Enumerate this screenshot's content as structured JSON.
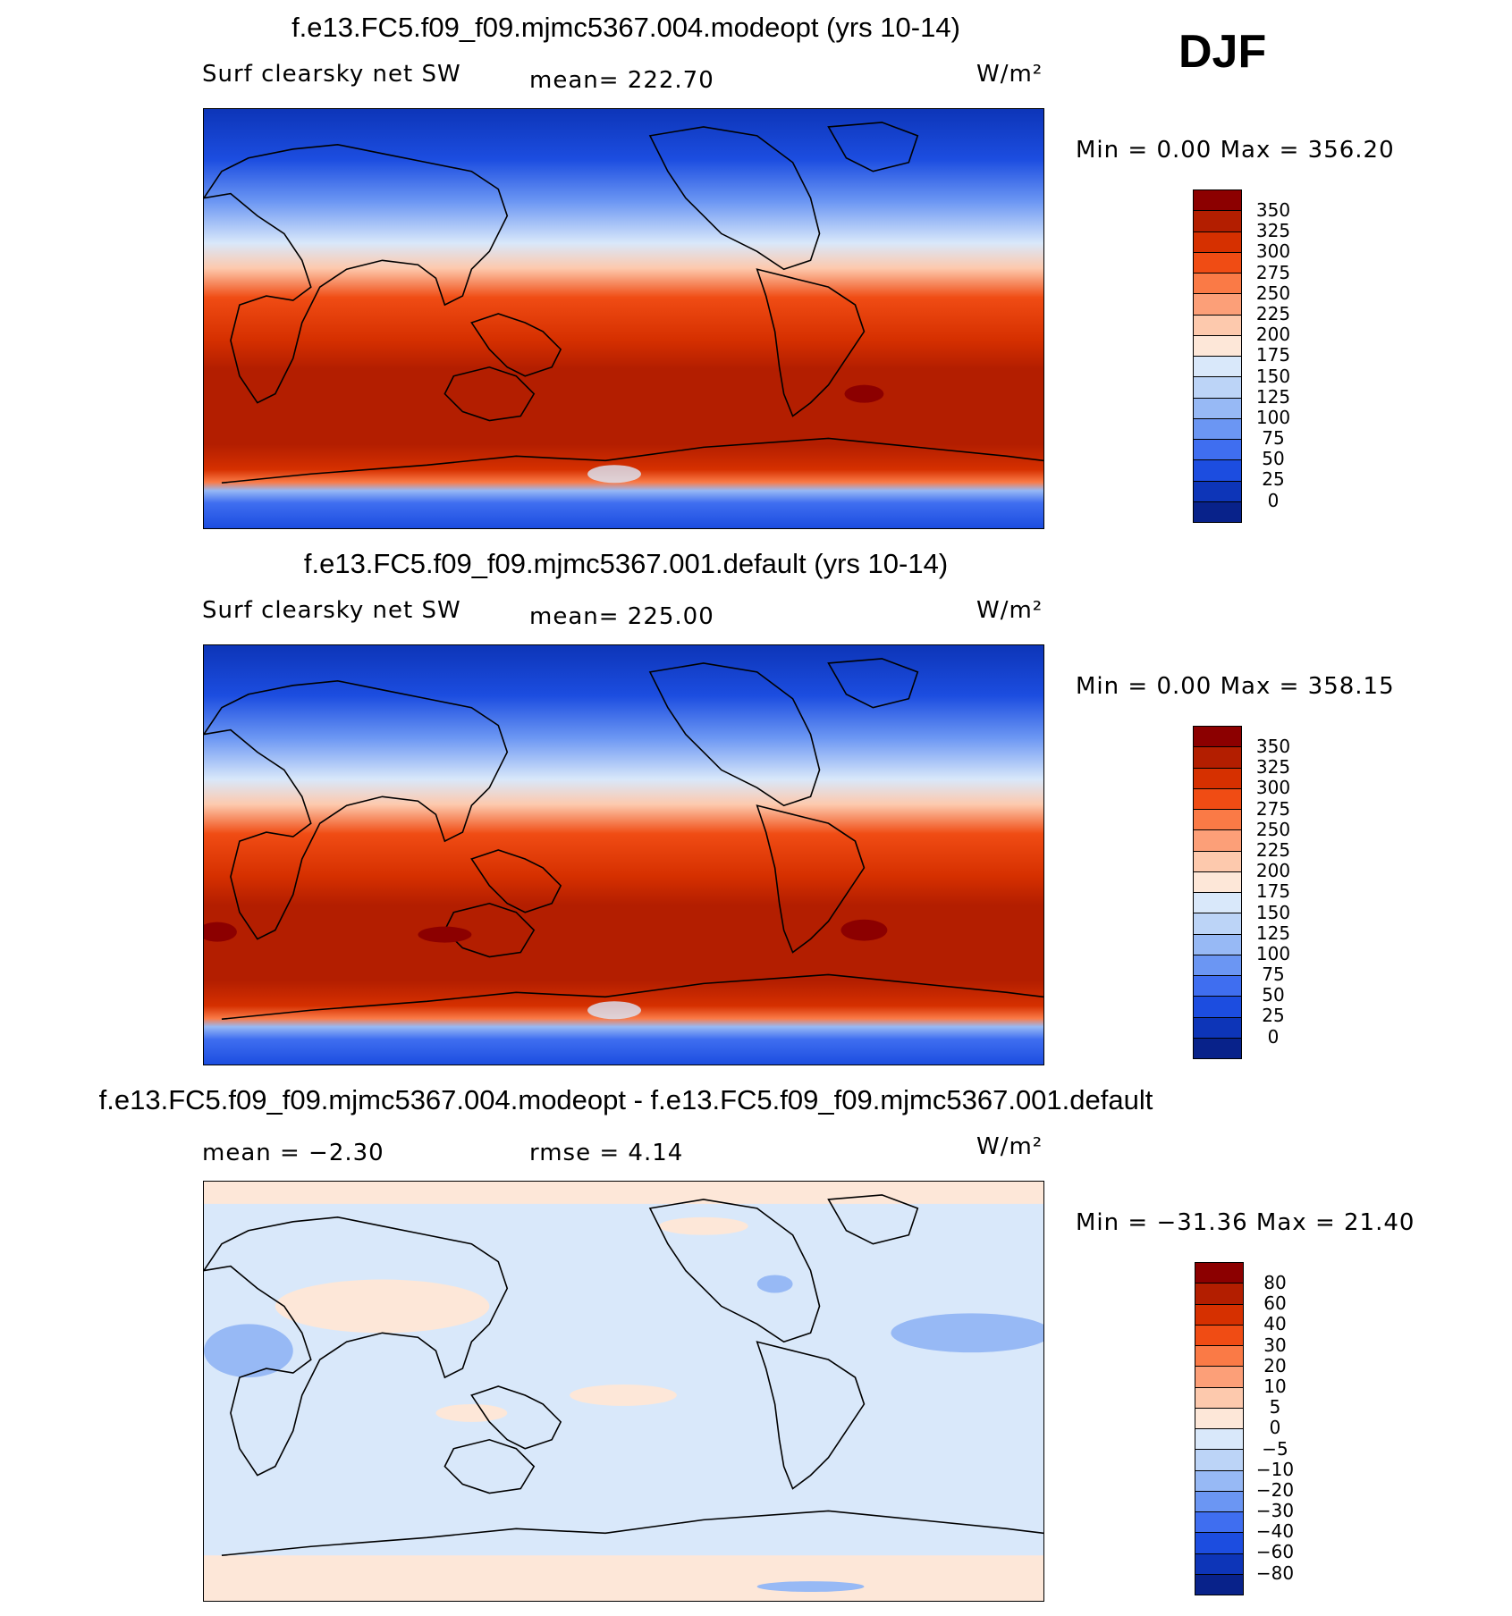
{
  "season": "DJF",
  "panels": [
    {
      "title": "f.e13.FC5.f09_f09.mjmc5367.004.modeopt (yrs 10-14)",
      "left_label": "Surf clearsky net SW",
      "center_label": "mean= 222.70",
      "units": "W/m²",
      "minmax": "Min =    0.00  Max =  356.20",
      "min": 0.0,
      "max": 356.2
    },
    {
      "title": "f.e13.FC5.f09_f09.mjmc5367.001.default (yrs 10-14)",
      "left_label": "Surf clearsky net SW",
      "center_label": "mean= 225.00",
      "units": "W/m²",
      "minmax": "Min =    0.00  Max =  358.15",
      "min": 0.0,
      "max": 358.15
    },
    {
      "title": "f.e13.FC5.f09_f09.mjmc5367.004.modeopt - f.e13.FC5.f09_f09.mjmc5367.001.default",
      "left_label": "mean =   −2.30",
      "center_label": "rmse =    4.14",
      "units": "W/m²",
      "minmax": "Min = −31.36  Max =   21.40",
      "min": -31.36,
      "max": 21.4
    }
  ],
  "colorbar_abs": {
    "labels": [
      "350",
      "325",
      "300",
      "275",
      "250",
      "225",
      "200",
      "175",
      "150",
      "125",
      "100",
      "75",
      "50",
      "25",
      "0"
    ],
    "colors": [
      "#8c0000",
      "#b31e00",
      "#d63000",
      "#f04c14",
      "#fa7a46",
      "#fc9f78",
      "#fdc9ad",
      "#fde7d8",
      "#d9e8fa",
      "#bcd4f7",
      "#97b9f5",
      "#6b96f3",
      "#3f6ef0",
      "#1c4de0",
      "#0d35b8",
      "#08228a"
    ]
  },
  "colorbar_diff": {
    "labels": [
      "80",
      "60",
      "40",
      "30",
      "20",
      "10",
      "5",
      "0",
      "−5",
      "−10",
      "−20",
      "−30",
      "−40",
      "−60",
      "−80"
    ],
    "colors": [
      "#8c0000",
      "#b31e00",
      "#d63000",
      "#f04c14",
      "#fa7a46",
      "#fc9f78",
      "#fdc9ad",
      "#fde7d8",
      "#d9e8fa",
      "#bcd4f7",
      "#97b9f5",
      "#6b96f3",
      "#3f6ef0",
      "#1c4de0",
      "#0d35b8",
      "#08228a"
    ]
  }
}
